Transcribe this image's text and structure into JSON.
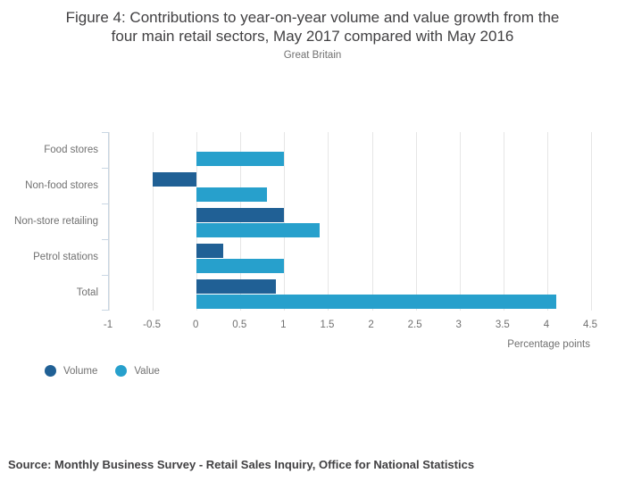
{
  "header": {
    "title_lines": [
      "Figure 4: Contributions to year-on-year volume and value growth from the",
      "four main retail sectors, May 2017 compared with May 2016"
    ],
    "subtitle": "Great Britain"
  },
  "chart_data": {
    "type": "bar",
    "orientation": "horizontal",
    "title": "Figure 4: Contributions to year-on-year volume and value growth from the four main retail sectors, May 2017 compared with May 2016",
    "subtitle": "Great Britain",
    "categories": [
      "Food stores",
      "Non-food stores",
      "Non-store retailing",
      "Petrol stations",
      "Total"
    ],
    "series": [
      {
        "name": "Volume",
        "color": "#206095",
        "values": [
          0,
          -0.5,
          1.0,
          0.3,
          0.9
        ]
      },
      {
        "name": "Value",
        "color": "#27A0CC",
        "values": [
          1.0,
          0.8,
          1.4,
          1.0,
          4.1
        ]
      }
    ],
    "xlabel": "Percentage points",
    "xlim": [
      -1,
      4.5
    ],
    "xtick_values": [
      -1,
      -0.5,
      0,
      0.5,
      1,
      1.5,
      2,
      2.5,
      3,
      3.5,
      4,
      4.5
    ],
    "xtick_labels": [
      "-1",
      "-0.5",
      "0",
      "0.5",
      "1",
      "1.5",
      "2",
      "2.5",
      "3",
      "3.5",
      "4",
      "4.5"
    ],
    "grid": "vertical",
    "legend_position": "bottom-left"
  },
  "legend": {
    "items": [
      {
        "label": "Volume",
        "color": "#206095"
      },
      {
        "label": "Value",
        "color": "#27A0CC"
      }
    ]
  },
  "footer": {
    "source": "Source: Monthly Business Survey - Retail Sales Inquiry, Office for National Statistics"
  },
  "colors": {
    "volume": "#206095",
    "value": "#27A0CC",
    "axis_line": "#c9d6e3",
    "gridline": "#e6e6e6",
    "text_muted": "#707070",
    "text_dark": "#414042"
  }
}
